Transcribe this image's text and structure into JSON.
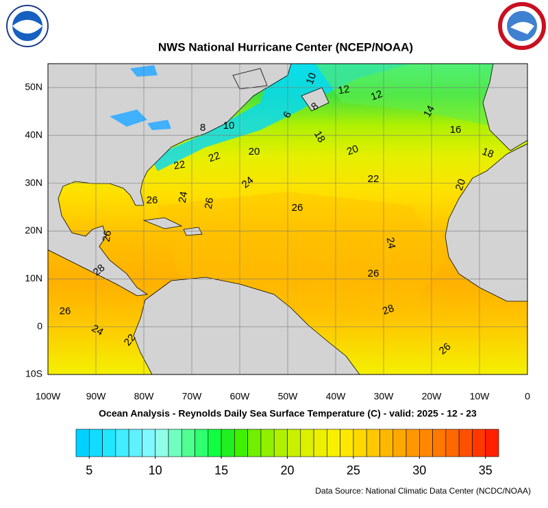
{
  "header": {
    "title": "NWS National Hurricane Center (NCEP/NOAA)"
  },
  "map": {
    "lon_range": [
      -100,
      0
    ],
    "lat_range": [
      -10,
      55
    ],
    "lon_ticks": [
      {
        "value": -100,
        "label": "100W"
      },
      {
        "value": -90,
        "label": "90W"
      },
      {
        "value": -80,
        "label": "80W"
      },
      {
        "value": -70,
        "label": "70W"
      },
      {
        "value": -60,
        "label": "60W"
      },
      {
        "value": -50,
        "label": "50W"
      },
      {
        "value": -40,
        "label": "40W"
      },
      {
        "value": -30,
        "label": "30W"
      },
      {
        "value": -20,
        "label": "20W"
      },
      {
        "value": -10,
        "label": "10W"
      },
      0
    ],
    "lat_ticks": [
      {
        "value": -10,
        "label": "10S"
      },
      0,
      {
        "value": 10,
        "label": "10N"
      },
      {
        "value": 20,
        "label": "20N"
      },
      {
        "value": 30,
        "label": "30N"
      },
      {
        "value": 40,
        "label": "40N"
      },
      {
        "value": 50,
        "label": "50N"
      }
    ],
    "contour_labels": [
      10,
      12,
      12,
      14,
      16,
      18,
      20,
      6,
      8,
      8,
      10,
      18,
      20,
      20,
      22,
      22,
      22,
      24,
      24,
      26,
      26,
      26,
      24,
      26,
      28,
      26,
      28,
      26,
      26,
      24,
      22
    ]
  },
  "subtitle": "Ocean Analysis - Reynolds Daily Sea Surface Temperature (C) - valid: 2025 - 12 - 23",
  "colorbar": {
    "range": [
      4,
      36
    ],
    "ticks": [
      5,
      10,
      15,
      20,
      25,
      30,
      35
    ],
    "colors": [
      "#00d2ff",
      "#10dcff",
      "#20e6ff",
      "#40eeff",
      "#60f0ff",
      "#80f8ff",
      "#90ffe8",
      "#70ffc0",
      "#50ff90",
      "#30ff70",
      "#10ff40",
      "#20f020",
      "#40f000",
      "#70f000",
      "#90f000",
      "#b0f000",
      "#c8f000",
      "#dcf000",
      "#ecf000",
      "#f8f000",
      "#ffe800",
      "#ffd800",
      "#ffc800",
      "#ffb800",
      "#ffa800",
      "#ff9800",
      "#ff8800",
      "#ff7800",
      "#ff6800",
      "#ff5000",
      "#ff3800",
      "#ff2000"
    ]
  },
  "source": "Data Source: National Climatic Data Center (NCDC/NOAA)"
}
